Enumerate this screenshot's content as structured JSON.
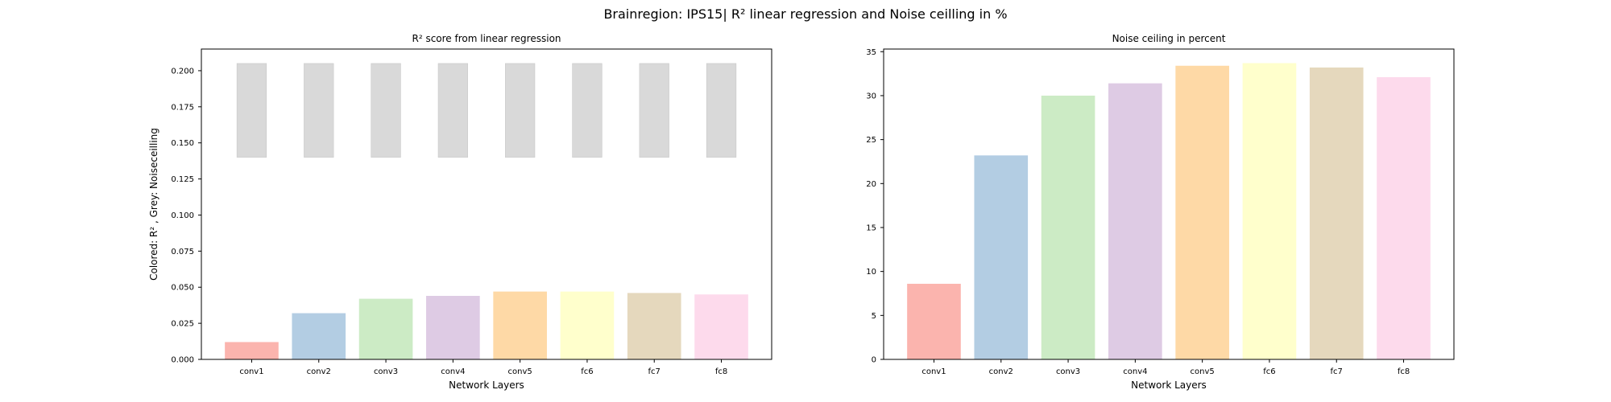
{
  "figure": {
    "title": "Brainregion: IPS15| R² linear regression and Noise ceilling in %"
  },
  "chart_data": [
    {
      "type": "bar",
      "title": "R² score from linear regression",
      "xlabel": "Network Layers",
      "ylabel": "Colored: R² , Grey: Noiseceilling",
      "categories": [
        "conv1",
        "conv2",
        "conv3",
        "conv4",
        "conv5",
        "fc6",
        "fc7",
        "fc8"
      ],
      "ylim": [
        0,
        0.215
      ],
      "yticks": [
        "0.000",
        "0.025",
        "0.050",
        "0.075",
        "0.100",
        "0.125",
        "0.150",
        "0.175",
        "0.200"
      ],
      "series": [
        {
          "values": [
            0.012,
            0.032,
            0.042,
            0.044,
            0.047,
            0.047,
            0.046,
            0.045
          ]
        },
        {
          "values": [
            0.205,
            0.205,
            0.205,
            0.205,
            0.205,
            0.205,
            0.205,
            0.205
          ],
          "base": [
            0.14,
            0.14,
            0.14,
            0.14,
            0.14,
            0.14,
            0.14,
            0.14
          ]
        }
      ],
      "colors": [
        "#fbb4ae",
        "#b3cde3",
        "#ccebc5",
        "#decbe4",
        "#fed9a6",
        "#ffffcc",
        "#e5d8bd",
        "#fddaec"
      ],
      "grey_color": "#d9d9d9",
      "grid": false
    },
    {
      "type": "bar",
      "title": "Noise ceiling in percent",
      "xlabel": "Network Layers",
      "ylabel": "",
      "categories": [
        "conv1",
        "conv2",
        "conv3",
        "conv4",
        "conv5",
        "fc6",
        "fc7",
        "fc8"
      ],
      "ylim": [
        0,
        35.3
      ],
      "yticks": [
        "0",
        "5",
        "10",
        "15",
        "20",
        "25",
        "30",
        "35"
      ],
      "series": [
        {
          "values": [
            8.6,
            23.2,
            30.0,
            31.4,
            33.4,
            33.7,
            33.2,
            32.1
          ]
        }
      ],
      "colors": [
        "#fbb4ae",
        "#b3cde3",
        "#ccebc5",
        "#decbe4",
        "#fed9a6",
        "#ffffcc",
        "#e5d8bd",
        "#fddaec"
      ],
      "grid": false
    }
  ]
}
